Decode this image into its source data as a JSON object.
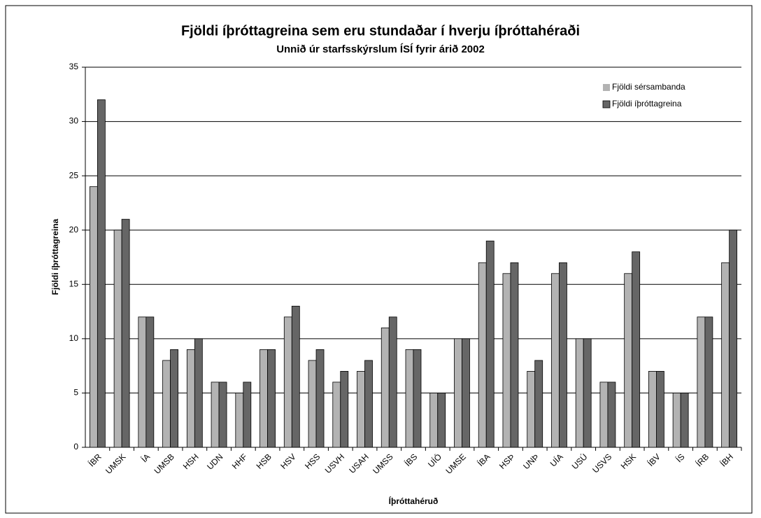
{
  "chart_data": {
    "type": "bar",
    "title": "Fjöldi íþróttagreina sem eru stundaðar í hverju íþróttahéraði",
    "subtitle": "Unnið úr starfsskýrslum ÍSÍ fyrir árið 2002",
    "x_label": "Íþróttahéruð",
    "y_label": "Fjöldi íþróttagreina",
    "categories": [
      "ÍBR",
      "UMSK",
      "ÍA",
      "UMSB",
      "HSH",
      "UDN",
      "HHF",
      "HSB",
      "HSV",
      "HSS",
      "USVH",
      "USAH",
      "UMSS",
      "ÍBS",
      "UÍÓ",
      "UMSE",
      "ÍBA",
      "HSÞ",
      "UNÞ",
      "UÍA",
      "USÚ",
      "USVS",
      "HSK",
      "ÍBV",
      "ÍS",
      "ÍRB",
      "ÍBH"
    ],
    "series": [
      {
        "name": "Fjöldi sérsambanda",
        "color": "#b3b3b3",
        "values": [
          24,
          20,
          12,
          8,
          9,
          6,
          5,
          9,
          12,
          8,
          6,
          7,
          11,
          9,
          5,
          10,
          17,
          16,
          7,
          16,
          10,
          6,
          16,
          7,
          5,
          12,
          17
        ]
      },
      {
        "name": "Fjöldi íþróttagreina",
        "color": "#666666",
        "values": [
          32,
          21,
          12,
          9,
          10,
          6,
          6,
          9,
          13,
          9,
          7,
          8,
          12,
          9,
          5,
          10,
          19,
          17,
          8,
          17,
          10,
          6,
          18,
          7,
          5,
          12,
          20
        ]
      }
    ],
    "ylim": [
      0,
      35
    ],
    "yticks": [
      0,
      5,
      10,
      15,
      20,
      25,
      30,
      35
    ],
    "grid": true,
    "legend": "upper right"
  }
}
